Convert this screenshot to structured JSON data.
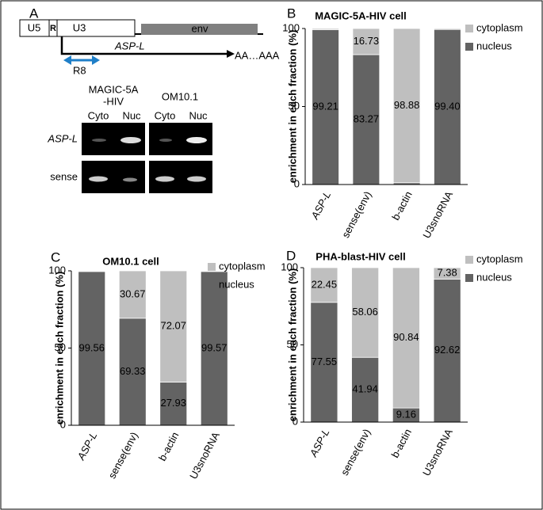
{
  "diagram": {
    "panel_label": "A",
    "construct": {
      "u5": "U5",
      "r": "R",
      "u3": "U3",
      "env": "env",
      "transcript": "ASP-L",
      "polya": "AA…AAA",
      "primer": "R8"
    },
    "gel": {
      "groups": [
        {
          "label_lines": [
            "MAGIC-5A",
            "-HIV"
          ],
          "lanes": [
            "Cyto",
            "Nuc"
          ]
        },
        {
          "label_lines": [
            "OM10.1"
          ],
          "lanes": [
            "Cyto",
            "Nuc"
          ]
        }
      ],
      "rows": [
        "ASP-L",
        "sense"
      ]
    }
  },
  "chart_data": [
    {
      "panel_label": "B",
      "type": "bar",
      "stacked": true,
      "title": "MAGIC-5A-HIV cell",
      "y_label": "enrichment in each fraction (%)",
      "categories": [
        "ASP-L",
        "sense(env)",
        "b-actin",
        "U3snoRNA"
      ],
      "series": [
        {
          "name": "nucleus",
          "color": "#636363",
          "values": [
            99.21,
            83.27,
            1.12,
            99.4
          ],
          "value_labels": [
            "99.21",
            "83.27",
            null,
            "99.40"
          ]
        },
        {
          "name": "cytoplasm",
          "color": "#bfbfbf",
          "values": [
            0.79,
            16.73,
            98.88,
            0.6
          ],
          "value_labels": [
            null,
            "16.73",
            "98.88",
            null
          ]
        }
      ],
      "ylim": [
        0,
        100
      ],
      "yticks": [
        0,
        50,
        100
      ]
    },
    {
      "panel_label": "C",
      "type": "bar",
      "stacked": true,
      "title": "OM10.1 cell",
      "y_label": "enrichment in each fraction (%)",
      "categories": [
        "ASP-L",
        "sense(env)",
        "b-actin",
        "U3snoRNA"
      ],
      "series": [
        {
          "name": "nucleus",
          "color": "#636363",
          "values": [
            99.56,
            69.33,
            27.93,
            99.57
          ],
          "value_labels": [
            "99.56",
            "69.33",
            "27.93",
            "99.57"
          ]
        },
        {
          "name": "cytoplasm",
          "color": "#bfbfbf",
          "values": [
            0.44,
            30.67,
            72.07,
            0.43
          ],
          "value_labels": [
            null,
            "30.67",
            "72.07",
            null
          ]
        }
      ],
      "ylim": [
        0,
        100
      ],
      "yticks": [
        0,
        50,
        100
      ]
    },
    {
      "panel_label": "D",
      "type": "bar",
      "stacked": true,
      "title": "PHA-blast-HIV cell",
      "y_label": "enrichment in each fraction (%)",
      "categories": [
        "ASP-L",
        "sense(env)",
        "b-actin",
        "U3snoRNA"
      ],
      "series": [
        {
          "name": "nucleus",
          "color": "#636363",
          "values": [
            77.55,
            41.94,
            9.16,
            92.62
          ],
          "value_labels": [
            "77.55",
            "41.94",
            "9.16",
            "92.62"
          ]
        },
        {
          "name": "cytoplasm",
          "color": "#bfbfbf",
          "values": [
            22.45,
            58.06,
            90.84,
            7.38
          ],
          "value_labels": [
            "22.45",
            "58.06",
            "90.84",
            "7.38"
          ]
        }
      ],
      "ylim": [
        0,
        100
      ],
      "yticks": [
        0,
        50,
        100
      ]
    }
  ]
}
